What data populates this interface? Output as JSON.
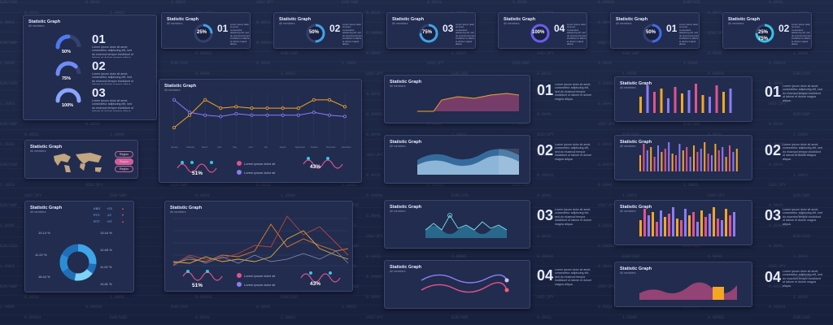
{
  "panel_title": "Statistic Graph",
  "panel_subtitle": "All members",
  "body_text": "Lorem ipsum dolor sit amet, consectetur adipiscing elit, sed do eiusmod tempor incididunt ut labore et dolore magna aliqua.",
  "body_text_short": "Lorem ipsum dolor sit amet, consectetur adipiscing elit, sed do eiusmod tempor incididunt ut labore et dolore magna aliqua.",
  "legend_item": "Lorem ipsum dolor sit",
  "stat_cards": [
    {
      "pct": "25%",
      "num": "01"
    },
    {
      "pct": "50%",
      "num": "02"
    },
    {
      "pct": "75%",
      "num": "03"
    },
    {
      "pct": "100%",
      "num": "04"
    },
    {
      "pct": "50%",
      "num": "01"
    },
    {
      "pct": "25%",
      "pct2": "75%",
      "num": "02"
    }
  ],
  "gauges": [
    {
      "pct": "50%",
      "num": "01"
    },
    {
      "pct": "75%",
      "num": "02"
    },
    {
      "pct": "100%",
      "num": "03"
    }
  ],
  "line_chart": {
    "months": [
      "January",
      "February",
      "March",
      "April",
      "May",
      "June",
      "July",
      "August",
      "September",
      "October",
      "November",
      "December"
    ],
    "series_a": [
      22,
      40,
      62,
      50,
      52,
      50,
      50,
      50,
      50,
      62,
      62,
      52
    ],
    "series_b": [
      62,
      44,
      40,
      38,
      42,
      40,
      40,
      40,
      40,
      44,
      40,
      38
    ],
    "badge_left": "51%",
    "badge_right": "43%"
  },
  "map_legend": [
    "Region",
    "Region",
    "Region"
  ],
  "donut": {
    "labels_left": [
      "10.14 %",
      "11.22 %",
      "18.44 %"
    ],
    "labels_right": [
      "13.44 %",
      "12.65 %",
      "11.02 %",
      "14.81 %"
    ],
    "tickers": [
      {
        "sym": "KBS",
        "val": "+23"
      },
      {
        "sym": "PTC",
        "val": "-12"
      },
      {
        "sym": "RTT",
        "val": "+07"
      }
    ]
  },
  "multi_line": {
    "badge_left": "51%",
    "badge_right": "43%"
  },
  "mid_cards": [
    {
      "num": "01"
    },
    {
      "num": "02"
    },
    {
      "num": "03"
    },
    {
      "num": "04"
    }
  ],
  "right_cards": [
    {
      "num": "01"
    },
    {
      "num": "02"
    },
    {
      "num": "03"
    },
    {
      "num": "04"
    }
  ],
  "tickers": [
    "EUR/USD",
    "0.0041",
    "1.9963",
    "USD/JPY",
    "EUR/GBP",
    "0.0031",
    "1.0996",
    "0.00091"
  ],
  "colors": {
    "orange": "#f5a623",
    "purple": "#8b7cf6",
    "pink": "#e0538f",
    "cyan": "#35c4e6",
    "blue": "#5a84f0"
  }
}
